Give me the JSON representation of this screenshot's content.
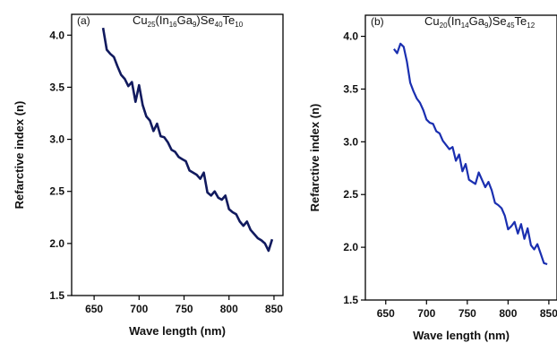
{
  "chart_data": [
    {
      "type": "line",
      "panel_label": "(a)",
      "formula": {
        "parts": [
          {
            "t": "Cu",
            "sub": false
          },
          {
            "t": "25",
            "sub": true
          },
          {
            "t": "(In",
            "sub": false
          },
          {
            "t": "16",
            "sub": true
          },
          {
            "t": "Ga",
            "sub": false
          },
          {
            "t": "9",
            "sub": true
          },
          {
            "t": ")Se",
            "sub": false
          },
          {
            "t": "40",
            "sub": true
          },
          {
            "t": "Te",
            "sub": false
          },
          {
            "t": "10",
            "sub": true
          }
        ]
      },
      "xlabel": "Wave length (nm)",
      "ylabel": "Refarctive index (n)",
      "xlim": [
        625,
        860
      ],
      "ylim": [
        1.5,
        4.2
      ],
      "xticks": [
        "650",
        "700",
        "750",
        "800",
        "850"
      ],
      "yticks": [
        "1.5",
        "2.0",
        "2.5",
        "3.0",
        "3.5",
        "4.0"
      ],
      "line_color": "#111a5e",
      "series": [
        {
          "x": [
            660,
            664,
            668,
            672,
            676,
            680,
            684,
            688,
            692,
            696,
            700,
            704,
            708,
            712,
            716,
            720,
            724,
            728,
            732,
            736,
            740,
            744,
            748,
            752,
            756,
            760,
            764,
            768,
            772,
            776,
            780,
            784,
            788,
            792,
            796,
            800,
            804,
            808,
            812,
            816,
            820,
            824,
            828,
            832,
            836,
            840,
            844,
            848
          ],
          "y": [
            4.07,
            3.86,
            3.82,
            3.79,
            3.7,
            3.62,
            3.58,
            3.51,
            3.55,
            3.36,
            3.52,
            3.33,
            3.22,
            3.18,
            3.08,
            3.15,
            3.03,
            3.02,
            2.97,
            2.9,
            2.88,
            2.83,
            2.81,
            2.79,
            2.7,
            2.68,
            2.66,
            2.62,
            2.68,
            2.49,
            2.46,
            2.5,
            2.44,
            2.42,
            2.46,
            2.33,
            2.3,
            2.28,
            2.21,
            2.17,
            2.21,
            2.13,
            2.09,
            2.05,
            2.03,
            2.0,
            1.93,
            2.04
          ]
        }
      ]
    },
    {
      "type": "line",
      "panel_label": "(b)",
      "formula": {
        "parts": [
          {
            "t": "Cu",
            "sub": false
          },
          {
            "t": "20",
            "sub": true
          },
          {
            "t": "(In",
            "sub": false
          },
          {
            "t": "14",
            "sub": true
          },
          {
            "t": "Ga",
            "sub": false
          },
          {
            "t": "9",
            "sub": true
          },
          {
            "t": ")Se",
            "sub": false
          },
          {
            "t": "45",
            "sub": true
          },
          {
            "t": "Te",
            "sub": false
          },
          {
            "t": "12",
            "sub": true
          }
        ]
      },
      "xlabel": "Wave length (nm)",
      "ylabel": "Refarctive index (n)",
      "xlim": [
        625,
        860
      ],
      "ylim": [
        1.5,
        4.2
      ],
      "xticks": [
        "650",
        "700",
        "750",
        "800",
        "850"
      ],
      "yticks": [
        "1.5",
        "2.0",
        "2.5",
        "3.0",
        "3.5",
        "4.0"
      ],
      "line_color": "#1a2fb0",
      "series": [
        {
          "x": [
            660,
            664,
            668,
            672,
            676,
            680,
            684,
            688,
            692,
            696,
            700,
            704,
            708,
            712,
            716,
            720,
            724,
            728,
            732,
            736,
            740,
            744,
            748,
            752,
            756,
            760,
            764,
            768,
            772,
            776,
            780,
            784,
            788,
            792,
            796,
            800,
            804,
            808,
            812,
            816,
            820,
            824,
            828,
            832,
            836,
            840,
            844,
            848
          ],
          "y": [
            3.88,
            3.84,
            3.93,
            3.9,
            3.76,
            3.56,
            3.48,
            3.41,
            3.37,
            3.3,
            3.21,
            3.18,
            3.17,
            3.1,
            3.08,
            3.01,
            2.97,
            2.93,
            2.95,
            2.82,
            2.88,
            2.72,
            2.79,
            2.64,
            2.62,
            2.6,
            2.71,
            2.64,
            2.57,
            2.62,
            2.54,
            2.42,
            2.4,
            2.37,
            2.3,
            2.17,
            2.2,
            2.24,
            2.13,
            2.22,
            2.08,
            2.18,
            2.02,
            1.98,
            2.03,
            1.94,
            1.85,
            1.84
          ]
        }
      ]
    }
  ]
}
